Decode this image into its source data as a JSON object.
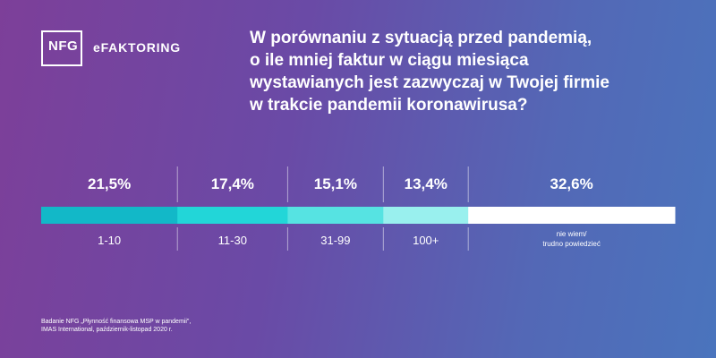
{
  "brand": {
    "logo_text": "NFG",
    "product": "eFAKTORING"
  },
  "question_lines": [
    "W porównaniu z sytuacją przed pandemią,",
    "o ile mniej faktur w ciągu miesiąca",
    "wystawianych jest zazwyczaj w Twojej firmie",
    "w trakcie pandemii koronawirusa?"
  ],
  "source_lines": [
    "Badanie NFG „Płynność finansowa MSP w pandemii\",",
    "IMAS International, październik-listopad 2020 r."
  ],
  "chart_data": {
    "type": "bar",
    "orientation": "horizontal-stacked-100",
    "unit": "%",
    "segments": [
      {
        "label": "1-10",
        "value": 21.5,
        "display": "21,5%",
        "color": "#12b8c8"
      },
      {
        "label": "11-30",
        "value": 17.4,
        "display": "17,4%",
        "color": "#22d6d8"
      },
      {
        "label": "31-99",
        "value": 15.1,
        "display": "15,1%",
        "color": "#56e3e2"
      },
      {
        "label": "100+",
        "value": 13.4,
        "display": "13,4%",
        "color": "#99f0ee"
      },
      {
        "label_lines": [
          "nie wiem/",
          "trudno powiedzieć"
        ],
        "value": 32.6,
        "display": "32,6%",
        "color": "#ffffff"
      }
    ]
  },
  "colors": {
    "divider": "rgba(255,255,255,0.5)"
  }
}
